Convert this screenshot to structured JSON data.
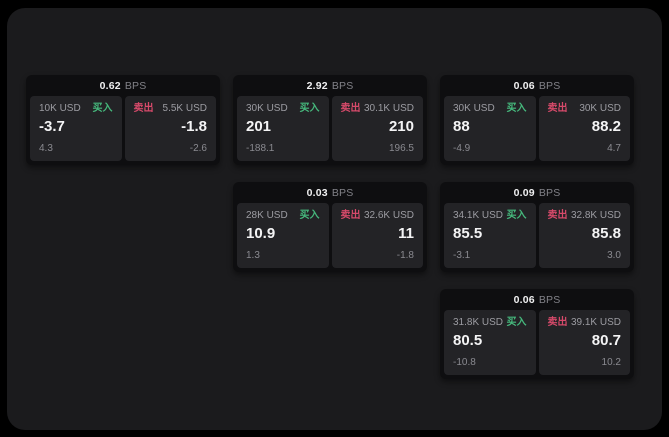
{
  "colors": {
    "page_bg": "#000000",
    "panel_bg": "#1b1b1d",
    "card_bg": "#0e0e10",
    "tile_bg": "#232326",
    "buy_accent": "#46b97d",
    "sell_accent": "#d64a6a",
    "value_text": "#f4f4f5",
    "muted_text": "#9c9ca2"
  },
  "labels": {
    "bps_unit": "BPS",
    "buy": "买入",
    "sell": "卖出"
  },
  "cards": [
    {
      "bps_value": "0.62",
      "buy": {
        "size": "10K USD",
        "price": "-3.7",
        "delta": "4.3"
      },
      "sell": {
        "size": "5.5K USD",
        "price": "-1.8",
        "delta": "-2.6"
      }
    },
    {
      "bps_value": "2.92",
      "buy": {
        "size": "30K USD",
        "price": "201",
        "delta": "-188.1"
      },
      "sell": {
        "size": "30.1K USD",
        "price": "210",
        "delta": "196.5"
      }
    },
    {
      "bps_value": "0.06",
      "buy": {
        "size": "30K USD",
        "price": "88",
        "delta": "-4.9"
      },
      "sell": {
        "size": "30K USD",
        "price": "88.2",
        "delta": "4.7"
      }
    },
    {
      "bps_value": "0.03",
      "buy": {
        "size": "28K USD",
        "price": "10.9",
        "delta": "1.3"
      },
      "sell": {
        "size": "32.6K USD",
        "price": "11",
        "delta": "-1.8"
      }
    },
    {
      "bps_value": "0.09",
      "buy": {
        "size": "34.1K USD",
        "price": "85.5",
        "delta": "-3.1"
      },
      "sell": {
        "size": "32.8K USD",
        "price": "85.8",
        "delta": "3.0"
      }
    },
    {
      "bps_value": "0.06",
      "buy": {
        "size": "31.8K USD",
        "price": "80.5",
        "delta": "-10.8"
      },
      "sell": {
        "size": "39.1K USD",
        "price": "80.7",
        "delta": "10.2"
      }
    }
  ]
}
